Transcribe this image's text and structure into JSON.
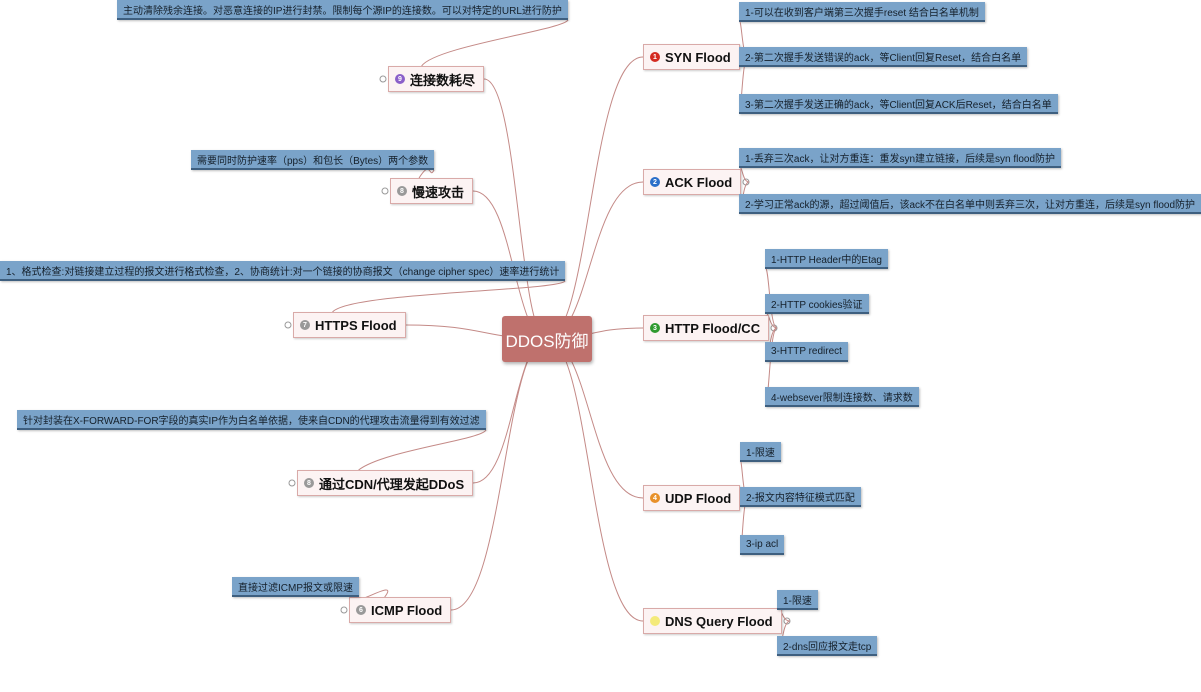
{
  "center": "DDOS防御",
  "branches": [
    {
      "number": "1",
      "label": "SYN Flood",
      "details": [
        "1-可以在收到客户端第三次握手reset 结合白名单机制",
        "2-第二次握手发送错误的ack，等Client回复Reset，结合白名单",
        "3-第二次握手发送正确的ack，等Client回复ACK后Reset，结合白名单"
      ]
    },
    {
      "number": "2",
      "label": "ACK Flood",
      "details": [
        "1-丢弃三次ack，让对方重连：重发syn建立链接，后续是syn flood防护",
        "2-学习正常ack的源，超过阈值后，该ack不在白名单中则丢弃三次，让对方重连，后续是syn flood防护"
      ]
    },
    {
      "number": "3",
      "label": "HTTP Flood/CC",
      "details": [
        "1-HTTP Header中的Etag",
        "2-HTTP cookies验证",
        "3-HTTP redirect",
        "4-websever限制连接数、请求数"
      ]
    },
    {
      "number": "4",
      "label": "UDP Flood",
      "details": [
        "1-限速",
        "2-报文内容特征模式匹配",
        "3-ip acl"
      ]
    },
    {
      "label": "DNS Query Flood",
      "details": [
        "1-限速",
        "2-dns回应报文走tcp"
      ]
    },
    {
      "number": "9",
      "label": "连接数耗尽",
      "details": [
        "主动清除残余连接。对恶意连接的IP进行封禁。限制每个源IP的连接数。可以对特定的URL进行防护"
      ]
    },
    {
      "number": "8",
      "label": "慢速攻击",
      "details": [
        "需要同时防护速率（pps）和包长（Bytes）两个参数"
      ]
    },
    {
      "number": "7",
      "label": "HTTPS Flood",
      "details": [
        "1、格式检查:对链接建立过程的报文进行格式检查，2、协商统计:对一个链接的协商报文（change cipher spec）速率进行统计"
      ]
    },
    {
      "number": "8",
      "label": "通过CDN/代理发起DDoS",
      "details": [
        "针对封装在X-FORWARD-FOR字段的真实IP作为白名单依据，使来自CDN的代理攻击流量得到有效过滤"
      ]
    },
    {
      "number": "6",
      "label": "ICMP Flood",
      "details": [
        "直接过滤ICMP报文或限速"
      ]
    }
  ]
}
